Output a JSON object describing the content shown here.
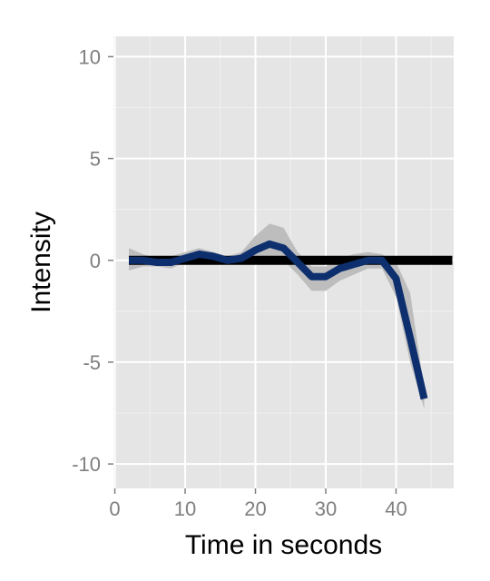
{
  "chart_data": {
    "type": "line",
    "title": "",
    "xlabel": "Time in seconds",
    "ylabel": "Intensity",
    "xlim": [
      -0.2,
      48.2
    ],
    "ylim": [
      -11.2,
      11
    ],
    "x_ticks": [
      0,
      10,
      20,
      30,
      40
    ],
    "y_ticks": [
      -10,
      -5,
      0,
      5,
      10
    ],
    "x_tick_labels": [
      "0",
      "10",
      "20",
      "30",
      "40"
    ],
    "y_tick_labels": [
      "-10",
      "-5",
      "0",
      "5",
      "10"
    ],
    "grid": true,
    "reference_line": {
      "y": 0,
      "x_range": [
        2,
        48
      ]
    },
    "series": [
      {
        "x": [
          2,
          4,
          6,
          8,
          10,
          12,
          14,
          16,
          18,
          20,
          22,
          24,
          26,
          28,
          30,
          32,
          34,
          36,
          38,
          40,
          42,
          44
        ],
        "y": [
          0.0,
          0.0,
          -0.1,
          -0.1,
          0.1,
          0.3,
          0.2,
          0.0,
          0.1,
          0.5,
          0.8,
          0.6,
          -0.1,
          -0.8,
          -0.8,
          -0.4,
          -0.2,
          0.0,
          0.0,
          -0.9,
          -3.8,
          -6.8
        ],
        "lower": [
          -0.5,
          -0.3,
          -0.3,
          -0.4,
          -0.1,
          0.1,
          0.0,
          -0.2,
          -0.2,
          0.1,
          0.1,
          0.0,
          -0.7,
          -1.5,
          -1.5,
          -1.0,
          -0.7,
          -0.4,
          -0.4,
          -1.8,
          -5.0,
          -7.3
        ],
        "upper": [
          0.6,
          0.3,
          0.1,
          0.2,
          0.4,
          0.6,
          0.4,
          0.2,
          0.4,
          1.2,
          1.8,
          1.6,
          0.4,
          -0.3,
          -0.3,
          0.1,
          0.3,
          0.4,
          0.3,
          -0.1,
          -1.6,
          -6.3
        ]
      }
    ],
    "colors": {
      "panel": "#e5e5e5",
      "grid_major": "#ffffff",
      "grid_minor": "#f0f0f0",
      "line": "#0d2f6e",
      "ribbon": "#bdbdbd",
      "reference": "#000000",
      "tick_text": "#7f7f7f"
    }
  }
}
